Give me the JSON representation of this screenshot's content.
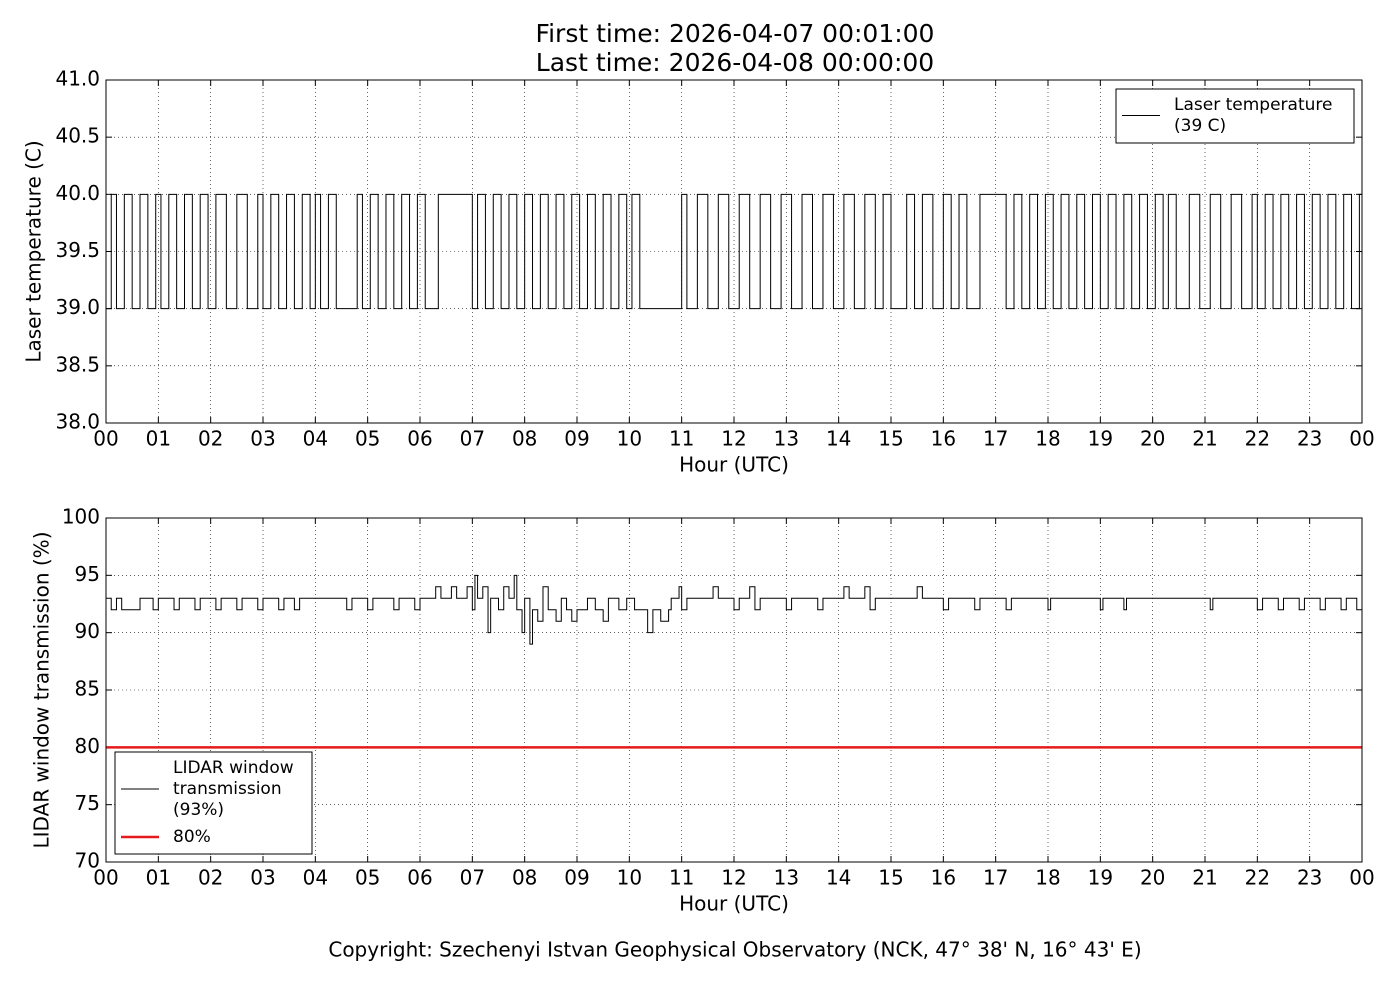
{
  "chart_data": [
    {
      "type": "line",
      "drawstyle": "steps-post",
      "title": "First time: 2026-04-07 00:01:00",
      "subtitle": "Last time: 2026-04-08 00:00:00",
      "xlabel": "Hour (UTC)",
      "ylabel": "Laser temperature (C)",
      "xlim": [
        0,
        24
      ],
      "ylim": [
        38,
        41
      ],
      "xticks": [
        {
          "value": 0,
          "label": "00"
        },
        {
          "value": 1,
          "label": "01"
        },
        {
          "value": 2,
          "label": "02"
        },
        {
          "value": 3,
          "label": "03"
        },
        {
          "value": 4,
          "label": "04"
        },
        {
          "value": 5,
          "label": "05"
        },
        {
          "value": 6,
          "label": "06"
        },
        {
          "value": 7,
          "label": "07"
        },
        {
          "value": 8,
          "label": "08"
        },
        {
          "value": 9,
          "label": "09"
        },
        {
          "value": 10,
          "label": "10"
        },
        {
          "value": 11,
          "label": "11"
        },
        {
          "value": 12,
          "label": "12"
        },
        {
          "value": 13,
          "label": "13"
        },
        {
          "value": 14,
          "label": "14"
        },
        {
          "value": 15,
          "label": "15"
        },
        {
          "value": 16,
          "label": "16"
        },
        {
          "value": 17,
          "label": "17"
        },
        {
          "value": 18,
          "label": "18"
        },
        {
          "value": 19,
          "label": "19"
        },
        {
          "value": 20,
          "label": "20"
        },
        {
          "value": 21,
          "label": "21"
        },
        {
          "value": 22,
          "label": "22"
        },
        {
          "value": 23,
          "label": "23"
        },
        {
          "value": 24,
          "label": "00"
        }
      ],
      "yticks": [
        {
          "value": 38,
          "label": "38.0"
        },
        {
          "value": 38.5,
          "label": "38.5"
        },
        {
          "value": 39,
          "label": "39.0"
        },
        {
          "value": 39.5,
          "label": "39.5"
        },
        {
          "value": 40,
          "label": "40.0"
        },
        {
          "value": 40.5,
          "label": "40.5"
        },
        {
          "value": 41,
          "label": "41.0"
        }
      ],
      "grid": true,
      "legend": "upper right",
      "series": [
        {
          "name": "Laser temperature\n(39 C)",
          "color": "#000000",
          "x": [
            0,
            0.1,
            0.2,
            0.35,
            0.5,
            0.65,
            0.8,
            0.95,
            1.05,
            1.2,
            1.35,
            1.5,
            1.65,
            1.8,
            1.95,
            2.1,
            2.3,
            2.5,
            2.7,
            2.9,
            3.0,
            3.15,
            3.3,
            3.45,
            3.6,
            3.75,
            3.9,
            4.0,
            4.1,
            4.25,
            4.4,
            4.8,
            4.9,
            5.05,
            5.2,
            5.35,
            5.5,
            5.65,
            5.8,
            5.95,
            6.1,
            6.35,
            7.0,
            7.1,
            7.25,
            7.4,
            7.55,
            7.7,
            7.85,
            8.0,
            8.15,
            8.3,
            8.45,
            8.6,
            8.75,
            8.9,
            9.05,
            9.2,
            9.35,
            9.5,
            9.65,
            9.8,
            9.95,
            10.05,
            10.2,
            11.0,
            11.1,
            11.3,
            11.5,
            11.7,
            11.9,
            12.1,
            12.3,
            12.5,
            12.7,
            12.9,
            13.1,
            13.3,
            13.5,
            13.7,
            13.9,
            14.1,
            14.3,
            14.5,
            14.7,
            14.85,
            15.0,
            15.3,
            15.45,
            15.6,
            15.8,
            16.0,
            16.15,
            16.3,
            16.45,
            16.7,
            17.2,
            17.35,
            17.5,
            17.65,
            17.8,
            17.95,
            18.1,
            18.25,
            18.4,
            18.55,
            18.7,
            18.85,
            19.0,
            19.15,
            19.3,
            19.45,
            19.6,
            19.75,
            19.9,
            20.05,
            20.2,
            20.3,
            20.45,
            20.7,
            20.9,
            21.1,
            21.3,
            21.5,
            21.7,
            21.9,
            22.0,
            22.15,
            22.3,
            22.45,
            22.6,
            22.75,
            22.9,
            23.05,
            23.2,
            23.35,
            23.5,
            23.65,
            23.8,
            23.95,
            24
          ],
          "values": [
            39,
            40,
            39,
            40,
            39,
            40,
            39,
            40,
            39,
            40,
            39,
            40,
            39,
            40,
            39,
            40,
            39,
            40,
            39,
            40,
            39,
            40,
            39,
            40,
            39,
            40,
            39,
            40,
            39,
            40,
            39,
            40,
            39,
            40,
            39,
            40,
            39,
            40,
            39,
            40,
            39,
            40,
            39,
            40,
            39,
            40,
            39,
            40,
            39,
            40,
            39,
            40,
            39,
            40,
            39,
            40,
            39,
            40,
            39,
            40,
            39,
            40,
            39,
            40,
            39,
            40,
            39,
            40,
            39,
            40,
            39,
            40,
            39,
            40,
            39,
            40,
            39,
            40,
            39,
            40,
            39,
            40,
            39,
            40,
            39,
            40,
            39,
            40,
            39,
            40,
            39,
            40,
            39,
            40,
            39,
            40,
            39,
            40,
            39,
            40,
            39,
            40,
            39,
            40,
            39,
            40,
            39,
            40,
            39,
            40,
            39,
            40,
            39,
            40,
            39,
            40,
            39,
            40,
            39,
            40,
            39,
            40,
            39,
            40,
            39,
            40,
            39,
            40,
            39,
            40,
            39,
            40,
            39,
            40,
            39,
            40,
            39,
            40,
            39,
            40,
            39
          ]
        }
      ]
    },
    {
      "type": "line",
      "drawstyle": "steps-post",
      "xlabel": "Hour (UTC)",
      "ylabel": "LIDAR window transmission (%)",
      "xlim": [
        0,
        24
      ],
      "ylim": [
        70,
        100
      ],
      "xticks": [
        {
          "value": 0,
          "label": "00"
        },
        {
          "value": 1,
          "label": "01"
        },
        {
          "value": 2,
          "label": "02"
        },
        {
          "value": 3,
          "label": "03"
        },
        {
          "value": 4,
          "label": "04"
        },
        {
          "value": 5,
          "label": "05"
        },
        {
          "value": 6,
          "label": "06"
        },
        {
          "value": 7,
          "label": "07"
        },
        {
          "value": 8,
          "label": "08"
        },
        {
          "value": 9,
          "label": "09"
        },
        {
          "value": 10,
          "label": "10"
        },
        {
          "value": 11,
          "label": "11"
        },
        {
          "value": 12,
          "label": "12"
        },
        {
          "value": 13,
          "label": "13"
        },
        {
          "value": 14,
          "label": "14"
        },
        {
          "value": 15,
          "label": "15"
        },
        {
          "value": 16,
          "label": "16"
        },
        {
          "value": 17,
          "label": "17"
        },
        {
          "value": 18,
          "label": "18"
        },
        {
          "value": 19,
          "label": "19"
        },
        {
          "value": 20,
          "label": "20"
        },
        {
          "value": 21,
          "label": "21"
        },
        {
          "value": 22,
          "label": "22"
        },
        {
          "value": 23,
          "label": "23"
        },
        {
          "value": 24,
          "label": "00"
        }
      ],
      "yticks": [
        70,
        75,
        80,
        85,
        90,
        95,
        100
      ],
      "grid": true,
      "legend": "lower left",
      "series": [
        {
          "name": "LIDAR window\ntransmission\n(93%)",
          "color": "#000000",
          "x": [
            0,
            0.1,
            0.2,
            0.3,
            0.65,
            0.9,
            1.0,
            1.3,
            1.4,
            1.7,
            1.8,
            2.1,
            2.2,
            2.5,
            2.6,
            2.9,
            3.0,
            3.3,
            3.4,
            3.6,
            3.7,
            4.6,
            4.7,
            5.0,
            5.1,
            5.5,
            5.6,
            5.9,
            6.0,
            6.3,
            6.4,
            6.6,
            6.7,
            6.9,
            7.0,
            7.05,
            7.1,
            7.2,
            7.3,
            7.35,
            7.5,
            7.6,
            7.7,
            7.8,
            7.85,
            7.95,
            8.0,
            8.1,
            8.15,
            8.25,
            8.35,
            8.45,
            8.6,
            8.7,
            8.8,
            8.9,
            9.0,
            9.2,
            9.35,
            9.5,
            9.6,
            9.8,
            9.95,
            10.1,
            10.35,
            10.45,
            10.6,
            10.75,
            10.8,
            10.95,
            11.0,
            11.1,
            11.6,
            11.7,
            12.0,
            12.1,
            12.3,
            12.4,
            12.5,
            13.0,
            13.1,
            13.6,
            13.7,
            14.1,
            14.2,
            14.5,
            14.6,
            14.7,
            15.5,
            15.6,
            16.0,
            16.1,
            16.6,
            16.7,
            17.2,
            17.3,
            18.0,
            18.05,
            19.0,
            19.05,
            19.45,
            19.5,
            21.1,
            21.15,
            22.0,
            22.1,
            22.4,
            22.5,
            22.8,
            22.9,
            23.2,
            23.3,
            23.6,
            23.7,
            23.9,
            24
          ],
          "values": [
            93,
            92,
            93,
            92,
            93,
            92,
            93,
            92,
            93,
            92,
            93,
            92,
            93,
            92,
            93,
            92,
            93,
            92,
            93,
            92,
            93,
            92,
            93,
            92,
            93,
            92,
            93,
            92,
            93,
            94,
            93,
            94,
            93,
            94,
            92,
            95,
            93,
            94,
            90,
            93,
            92,
            94,
            93,
            95,
            92,
            90,
            93,
            89,
            92,
            91,
            94,
            92,
            91,
            93,
            92,
            91,
            92,
            93,
            92,
            91,
            93,
            92,
            93,
            92,
            90,
            92,
            91,
            92,
            93,
            94,
            92,
            93,
            94,
            93,
            92,
            93,
            94,
            92,
            93,
            92,
            93,
            92,
            93,
            94,
            93,
            94,
            92,
            93,
            94,
            93,
            92,
            93,
            92,
            93,
            92,
            93,
            92,
            93,
            92,
            93,
            92,
            93,
            92,
            93,
            92,
            93,
            92,
            93,
            92,
            93,
            92,
            93,
            92,
            93,
            92,
            92
          ]
        },
        {
          "name": "80%",
          "color": "#e41a1c",
          "x": [
            0,
            24
          ],
          "values": [
            80,
            80
          ]
        }
      ]
    }
  ],
  "footer": "Copyright: Szechenyi Istvan Geophysical Observatory (NCK, 47° 38' N, 16° 43' E)"
}
